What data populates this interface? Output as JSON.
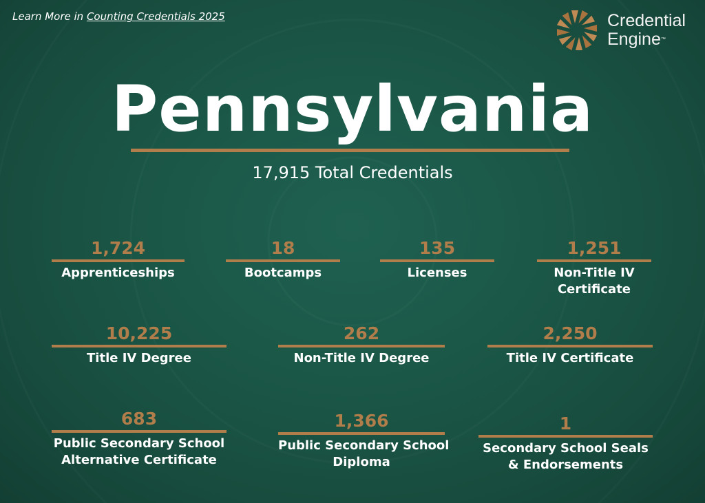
{
  "header": {
    "learn_prefix": "Learn More in ",
    "learn_link": "Counting Credentials 2025"
  },
  "logo": {
    "line1": "Credential",
    "line2": "Engine",
    "tm": "™"
  },
  "title": "Pennsylvania",
  "subtitle": "17,915 Total Credentials",
  "colors": {
    "accent": "#b07d4b",
    "background": "#1b5747"
  },
  "stats": [
    {
      "value": "1,724",
      "label": [
        "Apprenticeships"
      ]
    },
    {
      "value": "18",
      "label": [
        "Bootcamps"
      ]
    },
    {
      "value": "135",
      "label": [
        "Licenses"
      ]
    },
    {
      "value": "1,251",
      "label": [
        "Non-Title IV",
        "Certificate"
      ]
    },
    {
      "value": "10,225",
      "label": [
        "Title IV Degree"
      ]
    },
    {
      "value": "262",
      "label": [
        "Non-Title IV Degree"
      ]
    },
    {
      "value": "2,250",
      "label": [
        "Title IV Certificate"
      ]
    },
    {
      "value": "683",
      "label": [
        "Public Secondary School",
        "Alternative Certificate"
      ]
    },
    {
      "value": "1,366",
      "label": [
        "Public Secondary School",
        "Diploma"
      ]
    },
    {
      "value": "1",
      "label": [
        "Secondary School Seals",
        "& Endorsements"
      ]
    }
  ]
}
